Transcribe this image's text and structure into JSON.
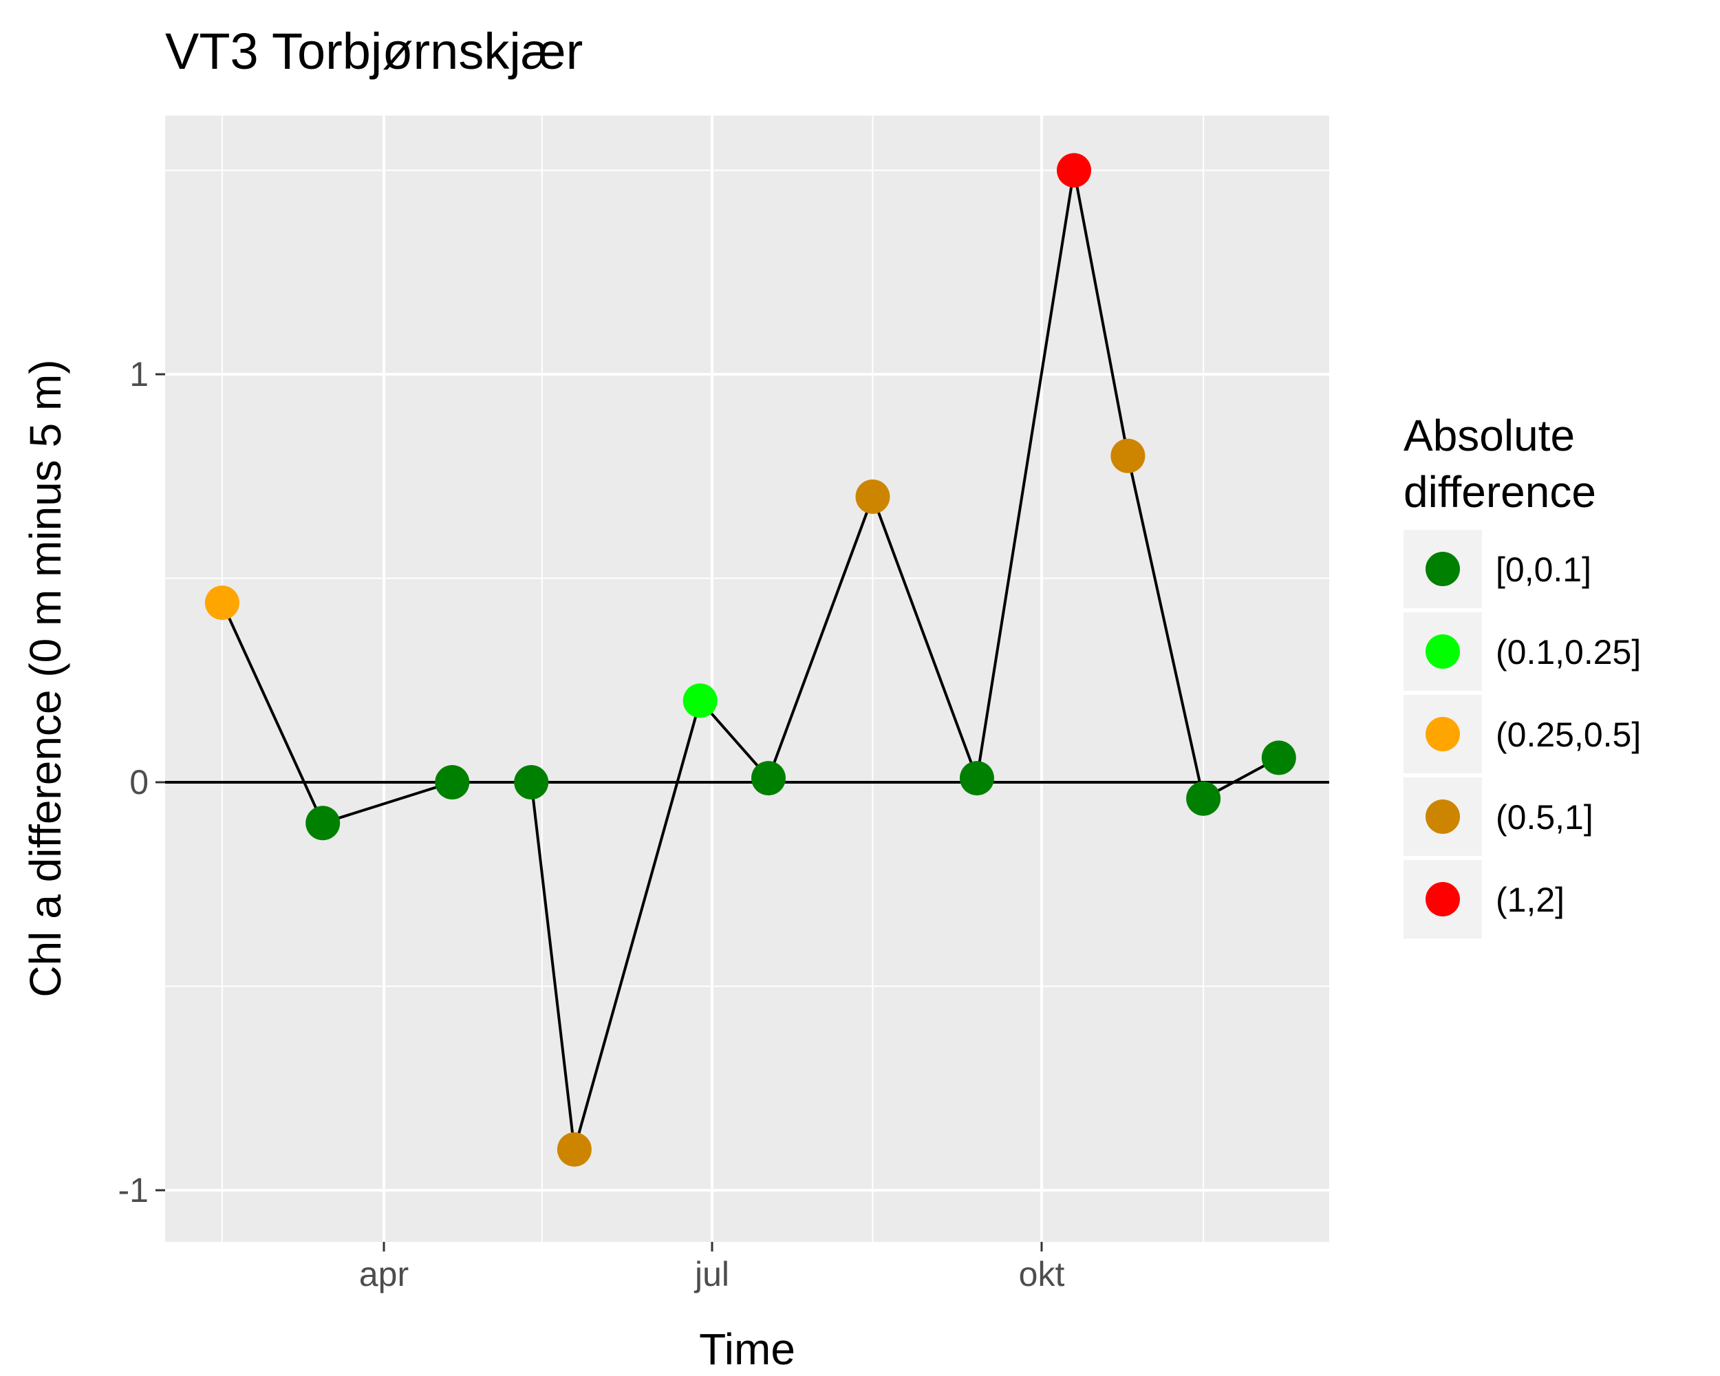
{
  "chart_data": {
    "type": "scatter",
    "title": "VT3 Torbjørnskjær",
    "xlabel": "Time",
    "ylabel": "Chl a difference (0 m minus 5 m)",
    "x_tick_labels": [
      "apr",
      "jul",
      "okt"
    ],
    "y_tick_labels": [
      "-1",
      "0",
      "1"
    ],
    "y_ticks": [
      -1,
      0,
      1
    ],
    "ylim": [
      -1.15,
      1.62
    ],
    "grid": true,
    "zero_line": true,
    "connect_points": true,
    "legend": {
      "title_lines": [
        "Absolute",
        "difference"
      ],
      "placement": "right",
      "entries": [
        {
          "label": "[0,0.1]",
          "color": "#008000"
        },
        {
          "label": "(0.1,0.25]",
          "color": "#00ff00"
        },
        {
          "label": "(0.25,0.5]",
          "color": "#ffa500"
        },
        {
          "label": "(0.5,1]",
          "color": "#cd8500"
        },
        {
          "label": "(1,2]",
          "color": "#ff0000"
        }
      ]
    },
    "points": [
      {
        "x": "2017-02-15",
        "y": 0.44,
        "cls": 2
      },
      {
        "x": "2017-03-15",
        "y": -0.1,
        "cls": 0
      },
      {
        "x": "2017-04-20",
        "y": 0.0,
        "cls": 0
      },
      {
        "x": "2017-05-12",
        "y": 0.0,
        "cls": 0
      },
      {
        "x": "2017-05-24",
        "y": -0.9,
        "cls": 3
      },
      {
        "x": "2017-06-28",
        "y": 0.2,
        "cls": 1
      },
      {
        "x": "2017-07-17",
        "y": 0.01,
        "cls": 0
      },
      {
        "x": "2017-08-15",
        "y": 0.7,
        "cls": 3
      },
      {
        "x": "2017-09-13",
        "y": 0.01,
        "cls": 0
      },
      {
        "x": "2017-10-10",
        "y": 1.5,
        "cls": 4
      },
      {
        "x": "2017-10-25",
        "y": 0.8,
        "cls": 3
      },
      {
        "x": "2017-11-15",
        "y": -0.04,
        "cls": 0
      },
      {
        "x": "2017-12-06",
        "y": 0.06,
        "cls": 0
      }
    ]
  }
}
